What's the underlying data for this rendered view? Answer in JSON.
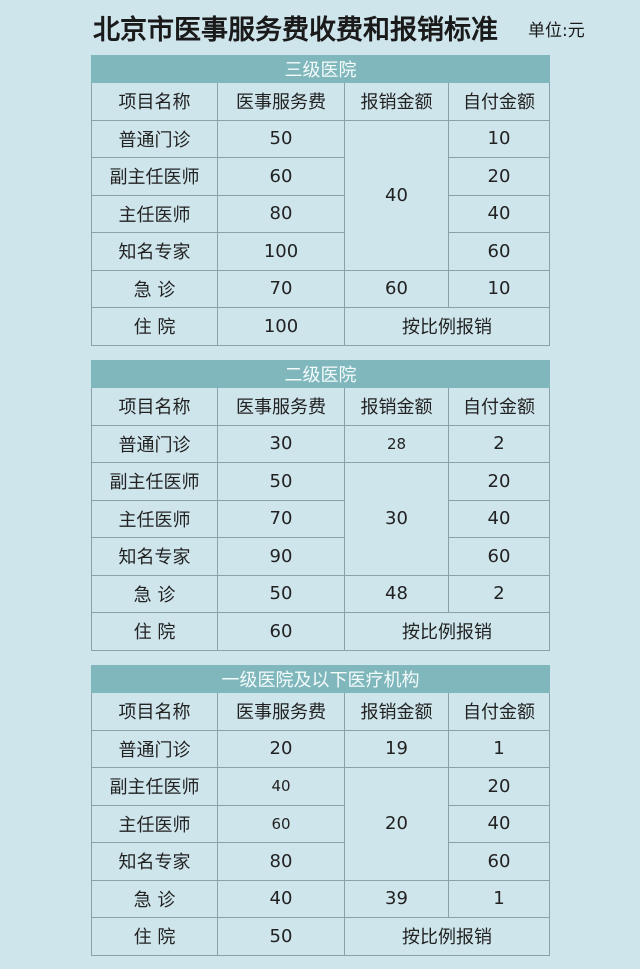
{
  "title": "北京市医事服务费收费和报销标准",
  "unit": "单位:元",
  "columns": [
    "项目名称",
    "医事服务费",
    "报销金额",
    "自付金额"
  ],
  "tables": [
    {
      "name": "三级医院",
      "rows": [
        {
          "item": "普通门诊",
          "fee": "50",
          "reimb": "40",
          "self": "10"
        },
        {
          "item": "副主任医师",
          "fee": "60",
          "self": "20"
        },
        {
          "item": "主任医师",
          "fee": "80",
          "self": "40"
        },
        {
          "item": "知名专家",
          "fee": "100",
          "self": "60"
        },
        {
          "item": "急  诊",
          "fee": "70",
          "reimb": "60",
          "self": "10"
        },
        {
          "item": "住  院",
          "fee": "100",
          "reimb": "按比例报销"
        }
      ]
    },
    {
      "name": "二级医院",
      "rows": [
        {
          "item": "普通门诊",
          "fee": "30",
          "reimb": "28",
          "self": "2"
        },
        {
          "item": "副主任医师",
          "fee": "50",
          "reimb": "30",
          "self": "20"
        },
        {
          "item": "主任医师",
          "fee": "70",
          "self": "40"
        },
        {
          "item": "知名专家",
          "fee": "90",
          "self": "60"
        },
        {
          "item": "急  诊",
          "fee": "50",
          "reimb": "48",
          "self": "2"
        },
        {
          "item": "住  院",
          "fee": "60",
          "reimb": "按比例报销"
        }
      ]
    },
    {
      "name": "一级医院及以下医疗机构",
      "rows": [
        {
          "item": "普通门诊",
          "fee": "20",
          "reimb": "19",
          "self": "1"
        },
        {
          "item": "副主任医师",
          "fee": "40",
          "reimb": "20",
          "self": "20"
        },
        {
          "item": "主任医师",
          "fee": "60",
          "self": "40"
        },
        {
          "item": "知名专家",
          "fee": "80",
          "self": "60"
        },
        {
          "item": "急  诊",
          "fee": "40",
          "reimb": "39",
          "self": "1"
        },
        {
          "item": "住  院",
          "fee": "50",
          "reimb": "按比例报销"
        }
      ]
    }
  ]
}
